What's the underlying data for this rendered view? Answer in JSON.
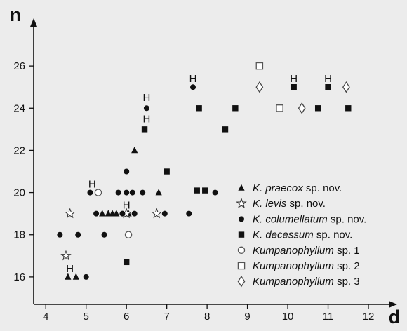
{
  "chart_data": {
    "type": "scatter",
    "title": "",
    "xlabel": "d",
    "ylabel": "n",
    "xlim": [
      3.7,
      12.4
    ],
    "ylim": [
      14.7,
      27.6
    ],
    "x_ticks": [
      4,
      5,
      6,
      7,
      8,
      9,
      10,
      11,
      12
    ],
    "y_ticks": [
      16,
      18,
      20,
      22,
      24,
      26
    ],
    "grid": false,
    "legend_position": "bottom-right",
    "series": [
      {
        "name": "K. praecox sp. nov.",
        "name_italic": "K. praecox",
        "name_suffix": " sp. nov.",
        "marker": "triangle-filled",
        "points": [
          [
            4.55,
            16
          ],
          [
            4.75,
            16
          ],
          [
            5.4,
            19
          ],
          [
            5.55,
            19
          ],
          [
            5.65,
            19
          ],
          [
            5.75,
            19
          ],
          [
            6.05,
            19
          ],
          [
            6.2,
            22
          ],
          [
            6.8,
            20
          ]
        ]
      },
      {
        "name": "K. levis sp. nov.",
        "name_italic": "K. levis",
        "name_suffix": " sp. nov.",
        "marker": "star-open",
        "points": [
          [
            4.5,
            17
          ],
          [
            4.6,
            19
          ],
          [
            6.0,
            19
          ],
          [
            6.75,
            19
          ]
        ]
      },
      {
        "name": "K. columellatum sp. nov.",
        "name_italic": "K. columellatum",
        "name_suffix": " sp. nov.",
        "marker": "circle-filled",
        "points": [
          [
            4.35,
            18
          ],
          [
            4.8,
            18
          ],
          [
            5.0,
            16
          ],
          [
            5.1,
            20
          ],
          [
            5.25,
            19
          ],
          [
            5.45,
            18
          ],
          [
            5.8,
            20
          ],
          [
            5.9,
            19
          ],
          [
            6.0,
            21
          ],
          [
            6.0,
            20
          ],
          [
            6.15,
            20
          ],
          [
            6.2,
            19
          ],
          [
            6.4,
            20
          ],
          [
            6.5,
            24
          ],
          [
            6.95,
            19
          ],
          [
            7.55,
            19
          ],
          [
            7.65,
            25
          ],
          [
            8.2,
            20
          ]
        ]
      },
      {
        "name": "K. decessum sp. nov.",
        "name_italic": "K. decessum",
        "name_suffix": " sp. nov.",
        "marker": "square-filled",
        "points": [
          [
            6.0,
            16.7
          ],
          [
            6.45,
            23
          ],
          [
            7.0,
            21
          ],
          [
            7.75,
            20.1
          ],
          [
            7.8,
            24
          ],
          [
            7.95,
            20.1
          ],
          [
            8.45,
            23
          ],
          [
            8.7,
            24
          ],
          [
            10.15,
            25
          ],
          [
            10.75,
            24
          ],
          [
            11.0,
            25
          ],
          [
            11.5,
            24
          ]
        ]
      },
      {
        "name": "Kumpanophyllum sp. 1",
        "name_italic": "Kumpanophyllum",
        "name_suffix": " sp. 1",
        "marker": "circle-open",
        "points": [
          [
            5.3,
            20
          ],
          [
            6.05,
            18
          ]
        ]
      },
      {
        "name": "Kumpanophyllum sp. 2",
        "name_italic": "Kumpanophyllum",
        "name_suffix": " sp. 2",
        "marker": "square-open",
        "points": [
          [
            9.3,
            26
          ],
          [
            9.8,
            24
          ]
        ]
      },
      {
        "name": "Kumpanophyllum sp. 3",
        "name_italic": "Kumpanophyllum",
        "name_suffix": " sp. 3",
        "marker": "diamond-open",
        "points": [
          [
            9.3,
            25
          ],
          [
            10.35,
            24
          ],
          [
            11.45,
            25
          ]
        ]
      }
    ],
    "annotations": [
      {
        "text": "H",
        "x": 4.6,
        "y": 16.4
      },
      {
        "text": "H",
        "x": 5.15,
        "y": 20.4
      },
      {
        "text": "H",
        "x": 6.0,
        "y": 19.4
      },
      {
        "text": "H",
        "x": 6.5,
        "y": 24.5
      },
      {
        "text": "H",
        "x": 6.5,
        "y": 23.5
      },
      {
        "text": "H",
        "x": 7.65,
        "y": 25.4
      },
      {
        "text": "H",
        "x": 10.15,
        "y": 25.4
      },
      {
        "text": "H",
        "x": 11.0,
        "y": 25.4
      }
    ]
  }
}
